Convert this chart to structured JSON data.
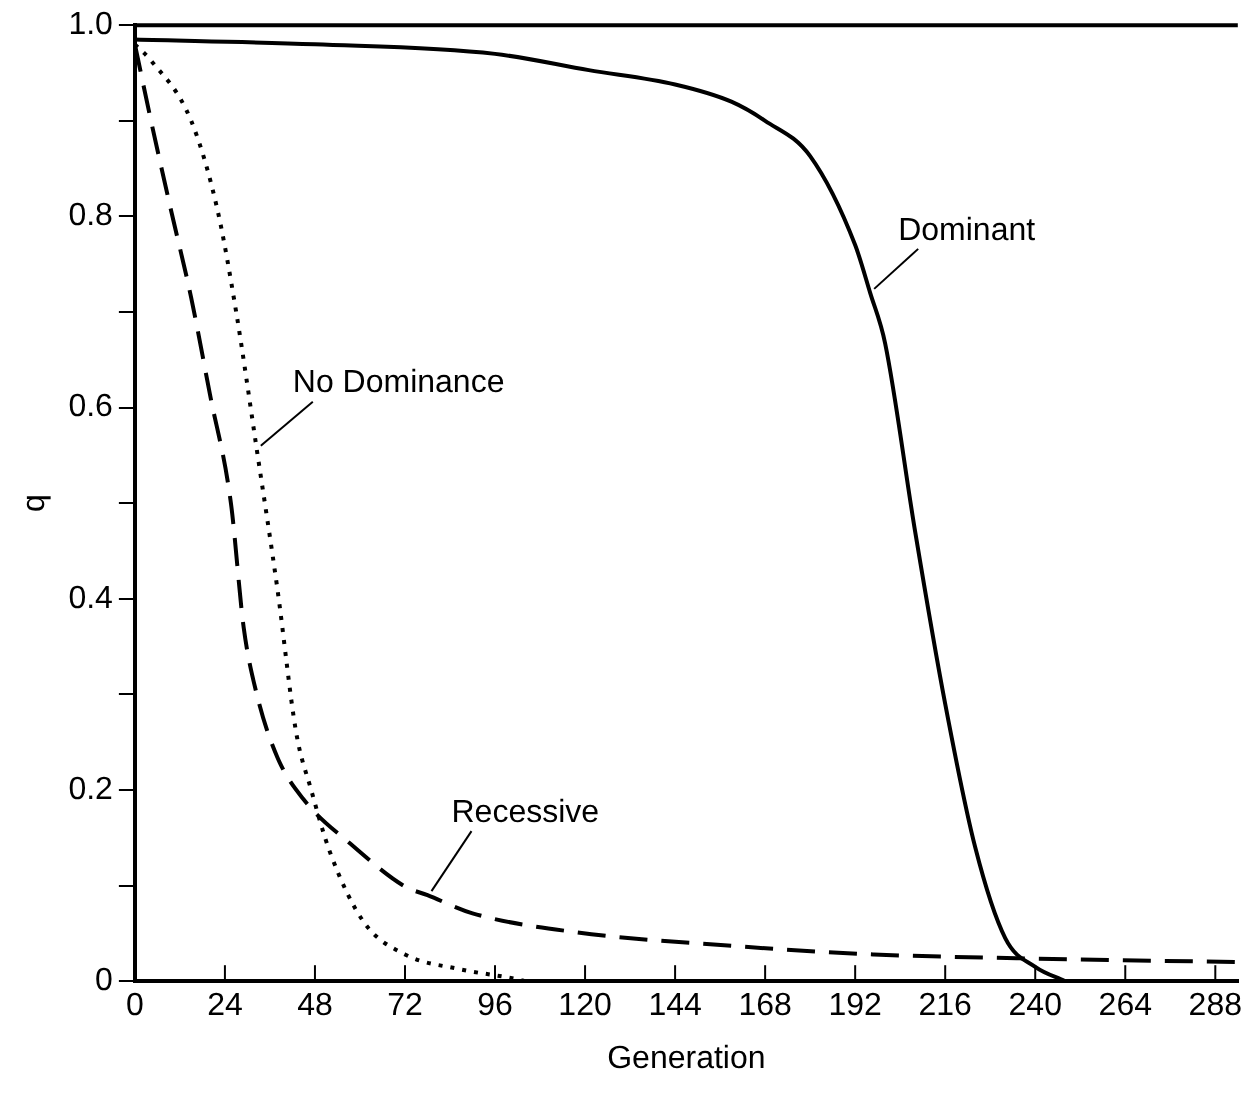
{
  "chart_data": {
    "type": "line",
    "xlabel": "Generation",
    "ylabel": "q",
    "xlim": [
      0,
      294
    ],
    "ylim": [
      0,
      1
    ],
    "xticks": [
      0,
      24,
      48,
      72,
      96,
      120,
      144,
      168,
      192,
      216,
      240,
      264,
      288
    ],
    "yticks": [
      0,
      {
        "value": 0.1,
        "label": null
      },
      0.2,
      {
        "value": 0.3,
        "label": null
      },
      0.4,
      {
        "value": 0.5,
        "label": null
      },
      0.6,
      {
        "value": 0.7,
        "label": null
      },
      0.8,
      {
        "value": 0.9,
        "label": null
      },
      {
        "value": 1,
        "label": "1.0"
      }
    ],
    "grid": false,
    "legend": false,
    "marker": "none",
    "series": [
      {
        "name": "Dominant",
        "color": "#000000",
        "line_style": "solid",
        "x": [
          0,
          48,
          96,
          121,
          144,
          159,
          168,
          180,
          192,
          196,
          200,
          208,
          216,
          224,
          232,
          240,
          248
        ],
        "values": [
          0.985,
          0.98,
          0.97,
          0.953,
          0.938,
          0.92,
          0.9,
          0.863,
          0.77,
          0.72,
          0.667,
          0.47,
          0.29,
          0.14,
          0.045,
          0.015,
          0
        ]
      },
      {
        "name": "No Dominance",
        "color": "#000000",
        "line_style": "dotted",
        "x": [
          0,
          4.3,
          15,
          22,
          27,
          32.5,
          38,
          43,
          47,
          52,
          61,
          72,
          86,
          102,
          104
        ],
        "values": [
          0.98,
          0.963,
          0.9,
          0.807,
          0.7,
          0.556,
          0.41,
          0.26,
          0.2,
          0.135,
          0.062,
          0.028,
          0.013,
          0.002,
          0
        ]
      },
      {
        "name": "Recessive",
        "color": "#000000",
        "line_style": "dashed",
        "x": [
          0,
          4.3,
          9.6,
          15,
          20,
          25.6,
          29,
          32.5,
          38,
          45,
          58,
          72,
          78,
          90,
          118,
          159,
          197,
          235,
          294
        ],
        "values": [
          0.98,
          0.9,
          0.807,
          0.715,
          0.614,
          0.5,
          0.37,
          0.3,
          0.234,
          0.19,
          0.142,
          0.099,
          0.09,
          0.071,
          0.051,
          0.037,
          0.028,
          0.024,
          0.02
        ]
      }
    ]
  }
}
